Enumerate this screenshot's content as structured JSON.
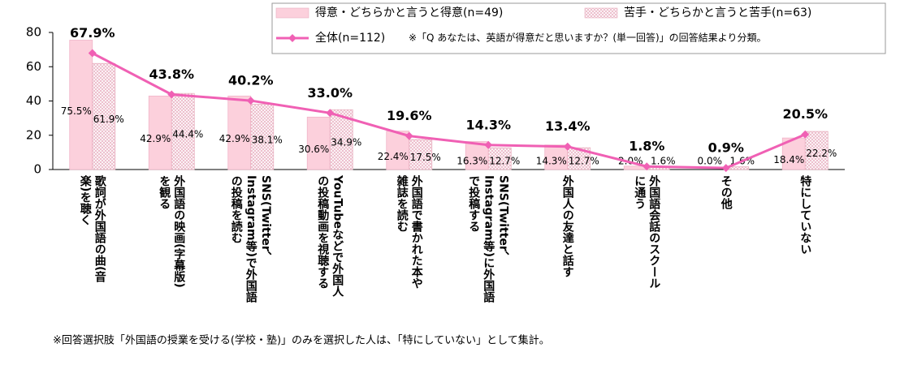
{
  "chart_data": {
    "type": "bar",
    "categories": [
      "歌詞が外国語の曲(音\n楽)を聴く",
      "外国語の映画(字幕版)\nを観る",
      "SNS(Twitter、\nInstagram等)で外国語\nの投稿を読む",
      "YouTubeなどで外国人\nの投稿動画を視聴する",
      "外国語で書かれた本や\n雑誌を読む",
      "SNS(Twitter、\nInstagram等)に外国語\nで投稿する",
      "外国人の友達と話す",
      "外国語会話のスクール\nに通う",
      "その他",
      "特にしていない"
    ],
    "series": [
      {
        "name": "得意・どちらかと言うと得意(n=49)",
        "type": "bar",
        "color": "#fcd0dc",
        "values": [
          75.5,
          42.9,
          42.9,
          30.6,
          22.4,
          16.3,
          14.3,
          2.0,
          0.0,
          18.4
        ],
        "value_labels": [
          "75.5%",
          "42.9%",
          "42.9%",
          "30.6%",
          "22.4%",
          "16.3%",
          "14.3%",
          "2.0%",
          "0.0%",
          "18.4%"
        ]
      },
      {
        "name": "苦手・どちらかと言うと苦手(n=63)",
        "type": "bar",
        "color": "#f3c6d3",
        "values": [
          61.9,
          44.4,
          38.1,
          34.9,
          17.5,
          12.7,
          12.7,
          1.6,
          1.6,
          22.2
        ],
        "value_labels": [
          "61.9%",
          "44.4%",
          "38.1%",
          "34.9%",
          "17.5%",
          "12.7%",
          "12.7%",
          "1.6%",
          "1.6%",
          "22.2%"
        ]
      },
      {
        "name": "全体(n=112)",
        "type": "line",
        "color": "#f060b4",
        "values": [
          67.9,
          43.8,
          40.2,
          33.0,
          19.6,
          14.3,
          13.4,
          1.8,
          0.9,
          20.5
        ],
        "value_labels": [
          "67.9%",
          "43.8%",
          "40.2%",
          "33.0%",
          "19.6%",
          "14.3%",
          "13.4%",
          "1.8%",
          "0.9%",
          "20.5%"
        ]
      }
    ],
    "ylim": [
      0,
      80
    ],
    "yticks": [
      0,
      20,
      40,
      60,
      80
    ],
    "grid": false,
    "legend_note": "※「Q あなたは、英語が得意だと思いますか？(単一回答)」の回答結果より分類。",
    "footnote": "※回答選択肢「外国語の授業を受ける(学校・塾)」のみを選択した人は、「特にしていない」として集計。"
  }
}
